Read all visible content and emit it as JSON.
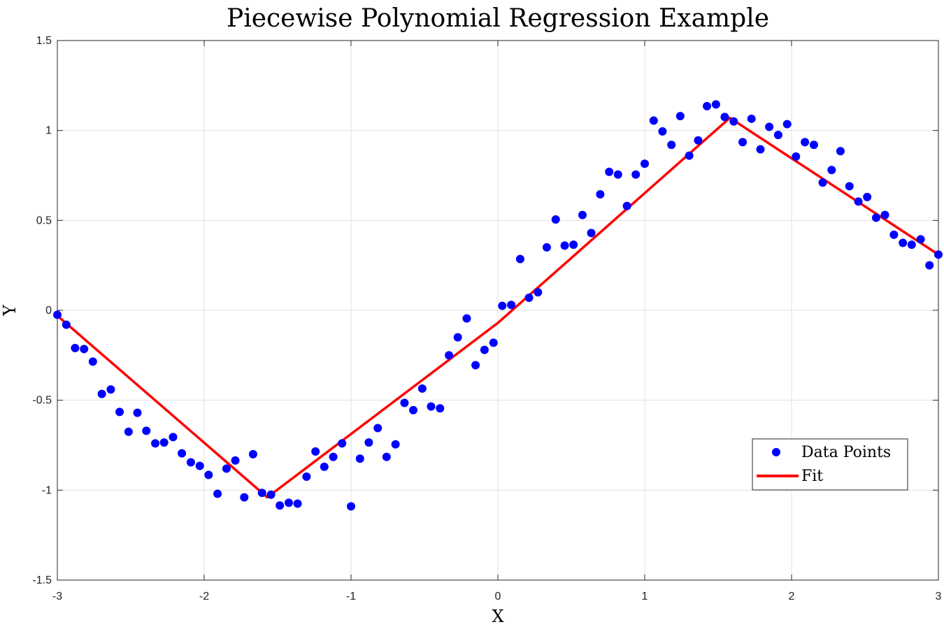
{
  "chart_data": {
    "type": "scatter",
    "title": "Piecewise Polynomial Regression Example",
    "xlabel": "X",
    "ylabel": "Y",
    "xlim": [
      -3,
      3
    ],
    "ylim": [
      -1.5,
      1.5
    ],
    "xticks": [
      -3,
      -2,
      -1,
      0,
      1,
      2,
      3
    ],
    "yticks": [
      -1.5,
      -1,
      -0.5,
      0,
      0.5,
      1,
      1.5
    ],
    "xtick_labels": [
      "-3",
      "-2",
      "-1",
      "0",
      "1",
      "2",
      "3"
    ],
    "ytick_labels": [
      "-1.5",
      "-1",
      "-0.5",
      "0",
      "0.5",
      "1",
      "1.5"
    ],
    "grid": true,
    "legend_position": "lower-right",
    "series": [
      {
        "name": "Data Points",
        "kind": "scatter",
        "color": "#0000ff",
        "x": [
          -3.0,
          -2.939,
          -2.879,
          -2.818,
          -2.758,
          -2.697,
          -2.636,
          -2.576,
          -2.515,
          -2.455,
          -2.394,
          -2.333,
          -2.273,
          -2.212,
          -2.152,
          -2.091,
          -2.03,
          -1.97,
          -1.909,
          -1.848,
          -1.788,
          -1.727,
          -1.667,
          -1.606,
          -1.545,
          -1.485,
          -1.424,
          -1.364,
          -1.303,
          -1.242,
          -1.182,
          -1.121,
          -1.061,
          -1.0,
          -0.939,
          -0.879,
          -0.818,
          -0.758,
          -0.697,
          -0.636,
          -0.576,
          -0.515,
          -0.455,
          -0.394,
          -0.333,
          -0.273,
          -0.212,
          -0.152,
          -0.091,
          -0.03,
          0.03,
          0.091,
          0.152,
          0.212,
          0.273,
          0.333,
          0.394,
          0.455,
          0.515,
          0.576,
          0.636,
          0.697,
          0.758,
          0.818,
          0.879,
          0.939,
          1.0,
          1.061,
          1.121,
          1.182,
          1.242,
          1.303,
          1.364,
          1.424,
          1.485,
          1.545,
          1.606,
          1.667,
          1.727,
          1.788,
          1.848,
          1.909,
          1.97,
          2.03,
          2.091,
          2.152,
          2.212,
          2.273,
          2.333,
          2.394,
          2.455,
          2.515,
          2.576,
          2.636,
          2.697,
          2.758,
          2.818,
          2.879,
          2.939,
          3.0
        ],
        "y": [
          -0.025,
          -0.08,
          -0.21,
          -0.215,
          -0.285,
          -0.465,
          -0.44,
          -0.565,
          -0.675,
          -0.57,
          -0.67,
          -0.74,
          -0.735,
          -0.705,
          -0.795,
          -0.845,
          -0.865,
          -0.915,
          -1.02,
          -0.88,
          -0.835,
          -1.04,
          -0.8,
          -1.015,
          -1.025,
          -1.085,
          -1.07,
          -1.075,
          -0.925,
          -0.785,
          -0.87,
          -0.815,
          -0.74,
          -1.09,
          -0.825,
          -0.735,
          -0.655,
          -0.815,
          -0.745,
          -0.515,
          -0.555,
          -0.435,
          -0.535,
          -0.545,
          -0.25,
          -0.15,
          -0.045,
          -0.305,
          -0.22,
          -0.18,
          0.025,
          0.03,
          0.285,
          0.07,
          0.1,
          0.35,
          0.505,
          0.36,
          0.365,
          0.53,
          0.43,
          0.645,
          0.77,
          0.755,
          0.58,
          0.755,
          0.815,
          1.055,
          0.995,
          0.92,
          1.08,
          0.86,
          0.945,
          1.135,
          1.145,
          1.075,
          1.05,
          0.935,
          1.065,
          0.895,
          1.02,
          0.975,
          1.035,
          0.855,
          0.935,
          0.92,
          0.71,
          0.78,
          0.885,
          0.69,
          0.605,
          0.63,
          0.515,
          0.53,
          0.42,
          0.375,
          0.365,
          0.395,
          0.25,
          0.31
        ]
      },
      {
        "name": "Fit",
        "kind": "line",
        "color": "#ff0000",
        "x": [
          -3.0,
          -1.57,
          0.0,
          1.58,
          3.0
        ],
        "y": [
          -0.03,
          -1.04,
          -0.07,
          1.07,
          0.31
        ]
      }
    ]
  }
}
